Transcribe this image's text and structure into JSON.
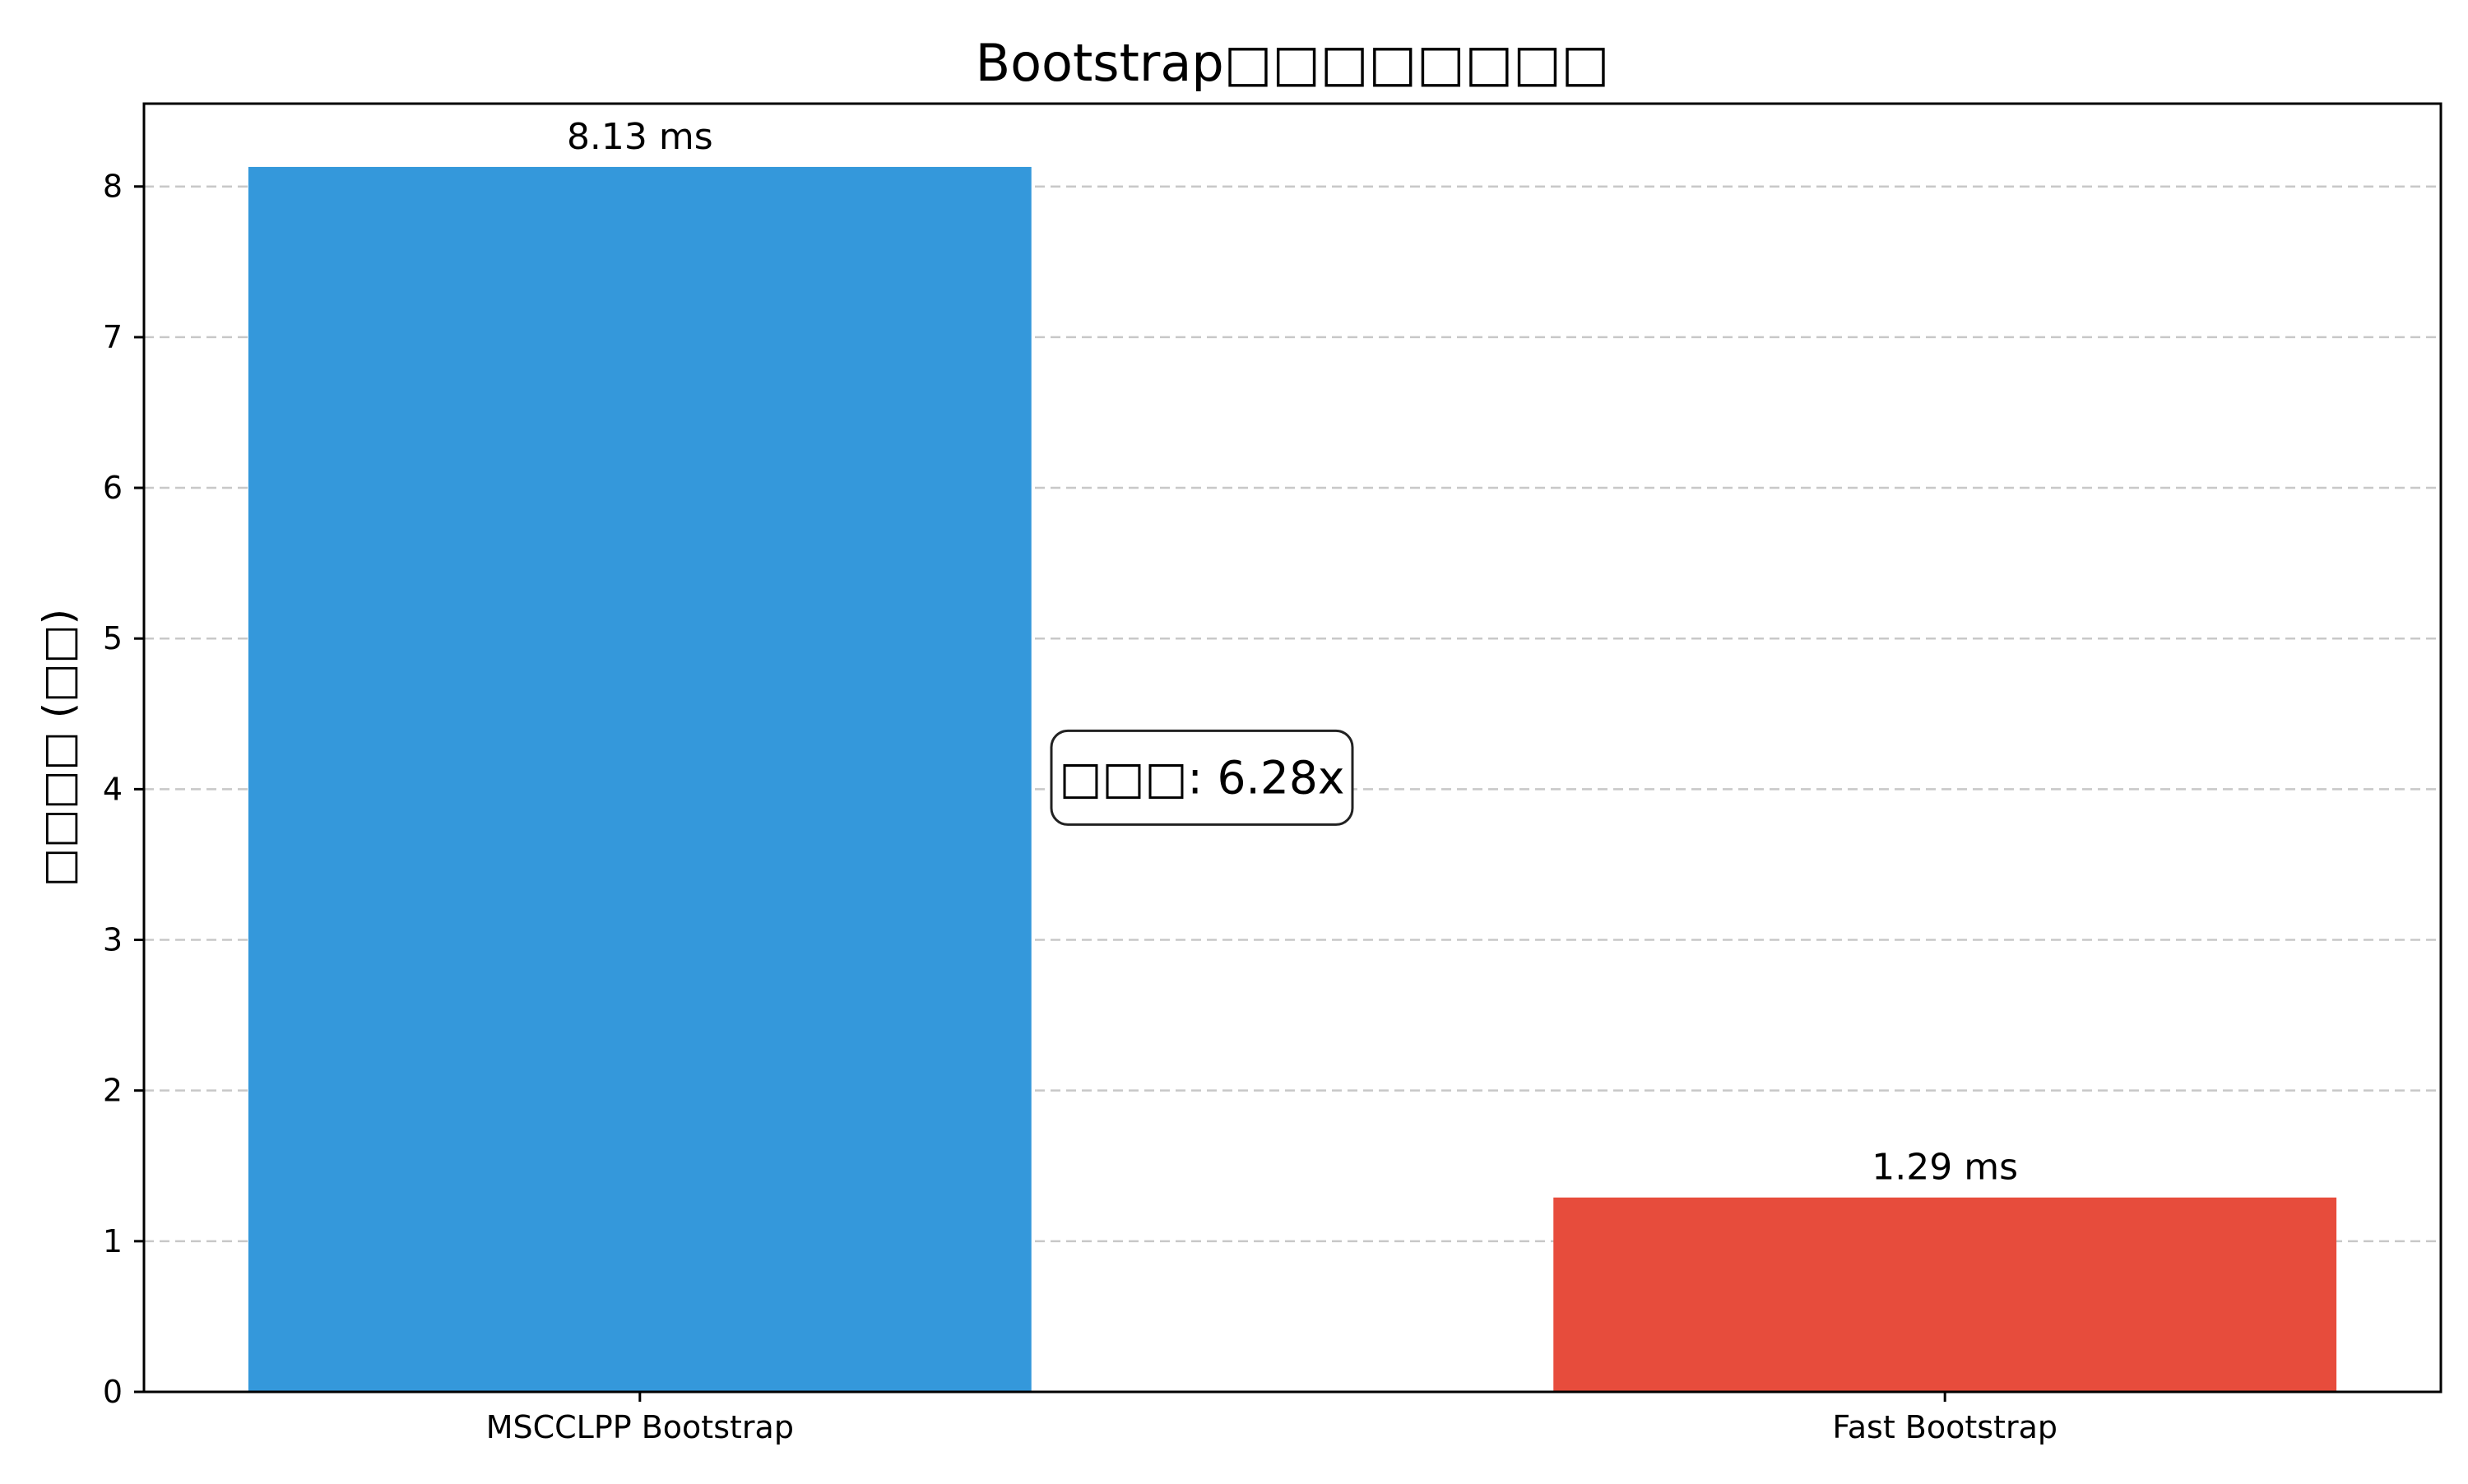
{
  "chart_data": {
    "type": "bar",
    "title": "Bootstrap□□□□□□□□",
    "ylabel": "□□□□ (□□)",
    "xlabel": "",
    "categories": [
      "MSCCLPP Bootstrap",
      "Fast Bootstrap"
    ],
    "values": [
      8.13,
      1.29
    ],
    "value_labels": [
      "8.13 ms",
      "1.29 ms"
    ],
    "colors": [
      "#3498db",
      "#e74c3c"
    ],
    "ylim": [
      0,
      8.55
    ],
    "yticks": [
      0,
      1,
      2,
      3,
      4,
      5,
      6,
      7,
      8
    ],
    "grid": "y-dashed",
    "annotation": {
      "text": "□□□: 6.28x",
      "y": 4.0
    }
  }
}
